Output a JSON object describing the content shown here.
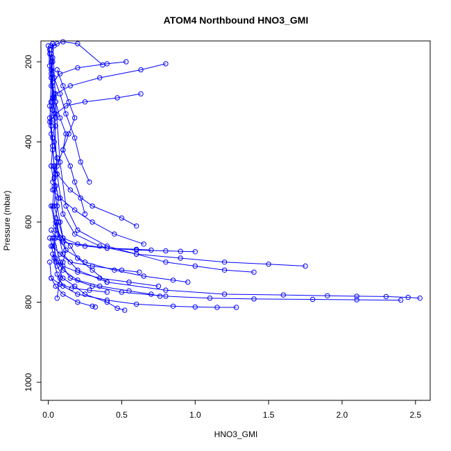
{
  "chart_data": {
    "type": "scatter",
    "title": "ATOM4 Northbound HNO3_GMI",
    "xlabel": "HNO3_GMI",
    "ylabel": "Pressure (mbar)",
    "xlim": [
      -0.05,
      2.6
    ],
    "ylim": [
      1045,
      148
    ],
    "y_reversed": true,
    "x_ticks": [
      0.0,
      0.5,
      1.0,
      1.5,
      2.0,
      2.5
    ],
    "x_tick_labels": [
      "0.0",
      "0.5",
      "1.0",
      "1.5",
      "2.0",
      "2.5"
    ],
    "y_ticks": [
      200,
      400,
      600,
      800,
      1000
    ],
    "y_tick_labels": [
      "200",
      "400",
      "600",
      "800",
      "1000"
    ],
    "grid": false,
    "legend": "none",
    "marker": "open-circle",
    "connected": true,
    "color": "#0000ff",
    "series": [
      {
        "x": [
          0.02,
          0.03,
          0.02,
          0.04,
          0.03,
          0.05,
          0.04,
          0.06,
          0.05,
          0.04,
          0.06,
          0.08,
          0.1,
          0.12,
          0.1,
          0.08,
          0.06
        ],
        "y": [
          160,
          200,
          240,
          280,
          320,
          360,
          400,
          440,
          480,
          520,
          560,
          600,
          640,
          670,
          700,
          740,
          790
        ]
      },
      {
        "x": [
          0.01,
          0.02,
          0.03,
          0.02,
          0.03,
          0.04,
          0.05,
          0.04,
          0.07,
          0.1,
          0.15,
          0.2,
          0.3,
          0.4
        ],
        "y": [
          170,
          230,
          290,
          350,
          410,
          460,
          510,
          560,
          600,
          640,
          660,
          690,
          720,
          750
        ]
      },
      {
        "x": [
          0.03,
          0.05,
          0.08,
          0.12,
          0.2,
          0.4,
          0.6,
          0.8,
          1.0,
          1.2,
          1.4
        ],
        "y": [
          155,
          300,
          450,
          560,
          620,
          660,
          680,
          700,
          710,
          720,
          725
        ]
      },
      {
        "x": [
          0.02,
          0.04,
          0.06,
          0.1,
          0.18,
          0.35,
          0.6,
          0.9,
          1.2,
          1.5,
          1.75
        ],
        "y": [
          180,
          330,
          480,
          580,
          630,
          660,
          680,
          690,
          700,
          705,
          710
        ]
      },
      {
        "x": [
          0.05,
          0.1,
          0.2,
          0.4,
          0.8,
          1.2,
          1.6,
          1.9,
          2.1,
          2.3,
          2.45,
          2.53
        ],
        "y": [
          600,
          680,
          720,
          750,
          770,
          780,
          782,
          784,
          785,
          786,
          788,
          790
        ]
      },
      {
        "x": [
          0.04,
          0.08,
          0.15,
          0.3,
          0.5,
          0.8,
          1.1,
          1.4,
          1.8,
          2.1,
          2.4
        ],
        "y": [
          640,
          700,
          740,
          760,
          775,
          785,
          790,
          792,
          793,
          794,
          795
        ]
      },
      {
        "x": [
          0.03,
          0.06,
          0.1,
          0.2,
          0.4,
          0.6,
          0.85,
          1.0,
          1.15,
          1.28
        ],
        "y": [
          680,
          730,
          760,
          780,
          795,
          805,
          810,
          812,
          813,
          813
        ]
      },
      {
        "x": [
          0.03,
          0.05,
          0.1,
          0.2,
          0.35,
          0.55,
          0.7,
          0.76
        ],
        "y": [
          640,
          690,
          720,
          745,
          760,
          772,
          780,
          785
        ]
      },
      {
        "x": [
          0.02,
          0.06,
          0.12,
          0.25,
          0.45,
          0.65,
          0.85,
          0.95
        ],
        "y": [
          560,
          630,
          670,
          700,
          720,
          735,
          745,
          750
        ]
      },
      {
        "x": [
          0.01,
          0.02,
          0.05,
          0.1,
          0.2,
          0.3,
          0.32
        ],
        "y": [
          700,
          740,
          760,
          780,
          800,
          810,
          812
        ]
      },
      {
        "x": [
          0.02,
          0.05,
          0.1,
          0.18,
          0.25,
          0.4,
          0.47,
          0.52
        ],
        "y": [
          660,
          700,
          740,
          760,
          780,
          800,
          815,
          820
        ]
      },
      {
        "x": [
          0.02,
          0.04,
          0.06,
          0.1,
          0.2,
          0.37
        ],
        "y": [
          170,
          160,
          155,
          150,
          155,
          208
        ]
      },
      {
        "x": [
          0.03,
          0.08,
          0.2,
          0.4,
          0.53
        ],
        "y": [
          250,
          230,
          215,
          205,
          200
        ]
      },
      {
        "x": [
          0.02,
          0.05,
          0.15,
          0.35,
          0.63,
          0.8
        ],
        "y": [
          300,
          280,
          260,
          240,
          220,
          205
        ]
      },
      {
        "x": [
          0.01,
          0.05,
          0.12,
          0.25,
          0.47,
          0.63
        ],
        "y": [
          350,
          330,
          310,
          300,
          290,
          280
        ]
      },
      {
        "x": [
          0.02,
          0.06,
          0.15,
          0.3,
          0.5,
          0.6
        ],
        "y": [
          460,
          480,
          520,
          560,
          590,
          610
        ]
      },
      {
        "x": [
          0.03,
          0.08,
          0.18,
          0.3,
          0.45,
          0.65
        ],
        "y": [
          520,
          540,
          570,
          600,
          630,
          655
        ]
      },
      {
        "x": [
          0.05,
          0.1,
          0.2,
          0.4,
          0.6,
          0.8,
          0.9,
          1.0
        ],
        "y": [
          620,
          640,
          655,
          665,
          670,
          672,
          673,
          674
        ]
      },
      {
        "x": [
          0.02,
          0.05,
          0.1,
          0.25,
          0.4,
          0.6,
          0.7
        ],
        "y": [
          620,
          640,
          650,
          660,
          665,
          668,
          670
        ]
      },
      {
        "x": [
          0.01,
          0.03,
          0.08,
          0.15,
          0.3,
          0.5,
          0.62
        ],
        "y": [
          640,
          660,
          680,
          700,
          710,
          720,
          725
        ]
      },
      {
        "x": [
          0.04,
          0.1,
          0.2,
          0.35,
          0.55,
          0.75
        ],
        "y": [
          690,
          710,
          725,
          740,
          750,
          760
        ]
      },
      {
        "x": [
          0.02,
          0.08,
          0.16,
          0.28,
          0.4
        ],
        "y": [
          740,
          755,
          765,
          770,
          775
        ]
      },
      {
        "x": [
          0.01,
          0.02,
          0.03,
          0.02,
          0.01,
          0.02,
          0.03,
          0.04,
          0.03
        ],
        "y": [
          180,
          220,
          260,
          300,
          340,
          380,
          420,
          460,
          500
        ]
      },
      {
        "x": [
          0.03,
          0.02,
          0.04,
          0.05,
          0.03,
          0.06,
          0.04,
          0.07,
          0.05,
          0.08
        ],
        "y": [
          190,
          240,
          290,
          340,
          390,
          440,
          490,
          540,
          590,
          640
        ]
      },
      {
        "x": [
          0.0,
          0.01,
          0.02,
          0.01,
          0.02,
          0.03,
          0.02,
          0.04,
          0.03,
          0.05,
          0.04,
          0.06
        ],
        "y": [
          160,
          210,
          260,
          310,
          360,
          410,
          460,
          510,
          560,
          610,
          660,
          710
        ]
      },
      {
        "x": [
          0.05,
          0.08,
          0.12,
          0.1,
          0.15,
          0.18,
          0.22,
          0.25
        ],
        "y": [
          300,
          340,
          380,
          420,
          460,
          500,
          540,
          580
        ]
      },
      {
        "x": [
          0.02,
          0.04,
          0.08,
          0.12,
          0.18,
          0.22,
          0.28
        ],
        "y": [
          200,
          240,
          280,
          330,
          390,
          450,
          500
        ]
      },
      {
        "x": [
          0.06,
          0.1,
          0.14,
          0.18,
          0.14,
          0.1,
          0.06
        ],
        "y": [
          220,
          260,
          300,
          340,
          380,
          420,
          460
        ]
      }
    ]
  }
}
